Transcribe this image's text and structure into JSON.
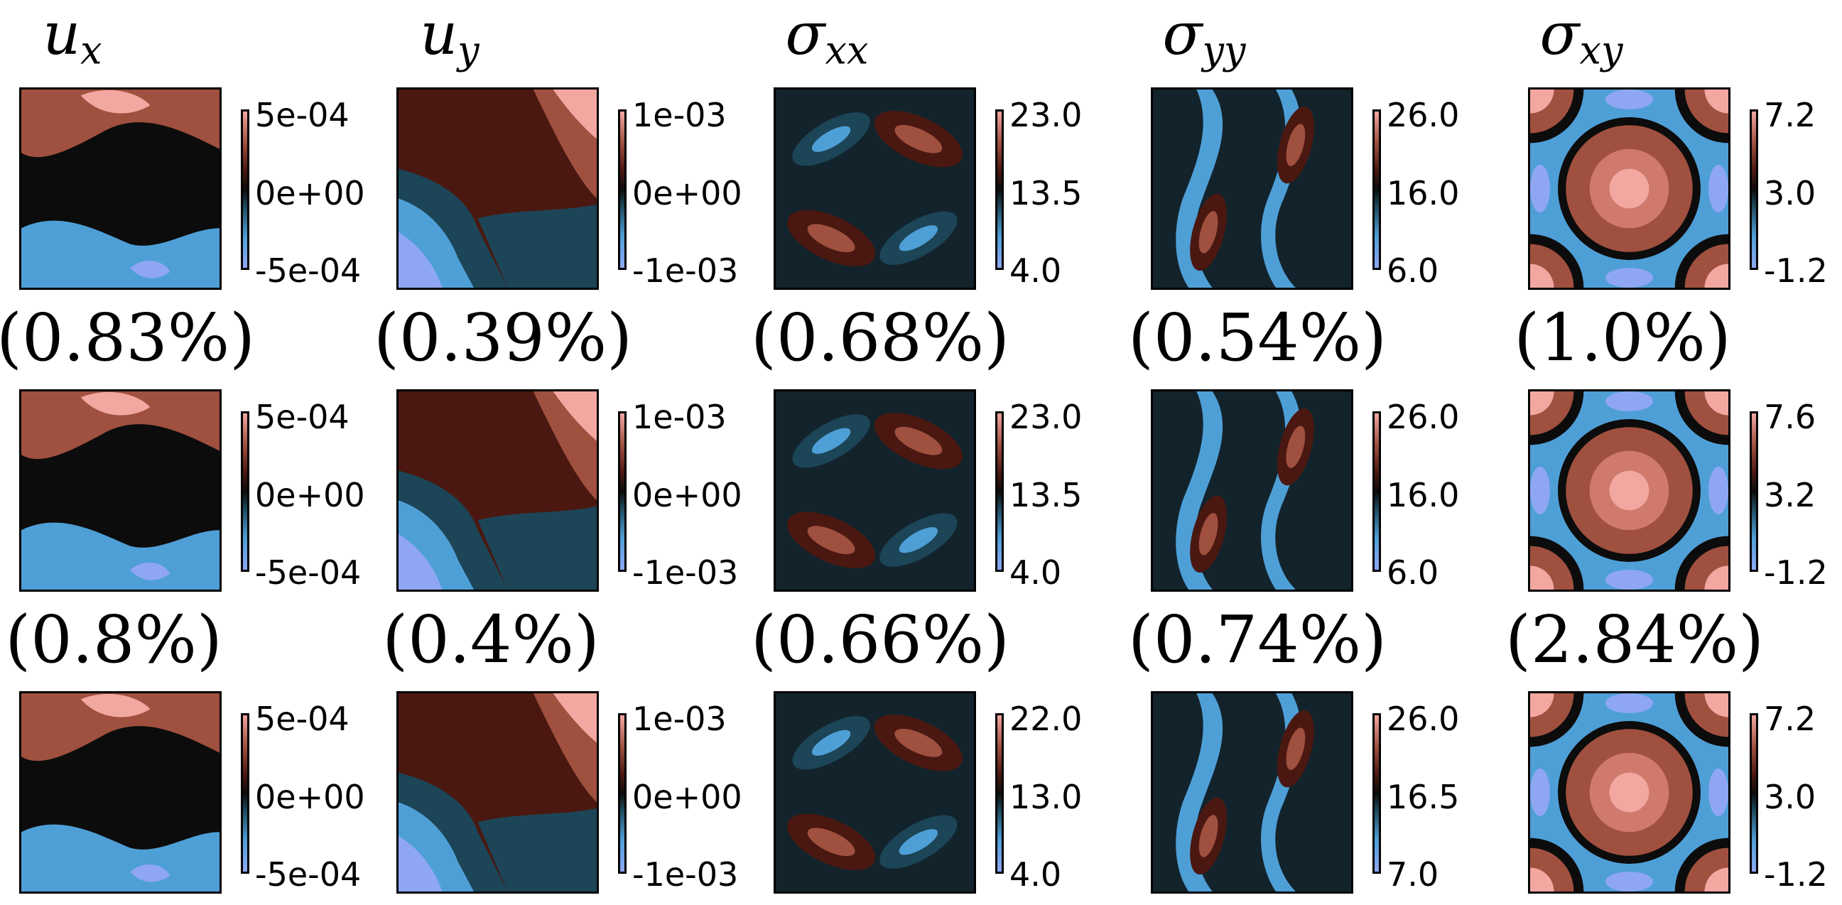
{
  "chart_data": {
    "type": "heatmap",
    "columns": [
      {
        "symbol": "u",
        "sub": "x"
      },
      {
        "symbol": "u",
        "sub": "y"
      },
      {
        "symbol": "σ",
        "sub": "xx"
      },
      {
        "symbol": "σ",
        "sub": "yy"
      },
      {
        "symbol": "σ",
        "sub": "xy"
      }
    ],
    "errors": [
      [
        "(0.83%)",
        "(0.39%)",
        "(0.68%)",
        "(0.54%)",
        "(1.0%)"
      ],
      [
        "(0.8%)",
        "(0.4%)",
        "(0.66%)",
        "(0.74%)",
        "(2.84%)"
      ]
    ],
    "colorbar_ticks": [
      [
        [
          "5e-04",
          "0e+00",
          "-5e-04"
        ],
        [
          "1e-03",
          "0e+00",
          "-1e-03"
        ],
        [
          "23.0",
          "13.5",
          "4.0"
        ],
        [
          "26.0",
          "16.0",
          "6.0"
        ],
        [
          "7.2",
          "3.0",
          "-1.2"
        ]
      ],
      [
        [
          "5e-04",
          "0e+00",
          "-5e-04"
        ],
        [
          "1e-03",
          "0e+00",
          "-1e-03"
        ],
        [
          "23.0",
          "13.5",
          "4.0"
        ],
        [
          "26.0",
          "16.0",
          "6.0"
        ],
        [
          "7.6",
          "3.2",
          "-1.2"
        ]
      ],
      [
        [
          "5e-04",
          "0e+00",
          "-5e-04"
        ],
        [
          "1e-03",
          "0e+00",
          "-1e-03"
        ],
        [
          "22.0",
          "13.0",
          "4.0"
        ],
        [
          "26.0",
          "16.5",
          "7.0"
        ],
        [
          "7.2",
          "3.0",
          "-1.2"
        ]
      ]
    ],
    "colors": {
      "low": "#8fa7f3",
      "mid_low": "#4f9fd7",
      "dark_blue": "#1c4557",
      "zero": "#0c0c0c",
      "dark_red": "#4a1810",
      "mid_high": "#a0503f",
      "high": "#f2a7a1"
    }
  }
}
